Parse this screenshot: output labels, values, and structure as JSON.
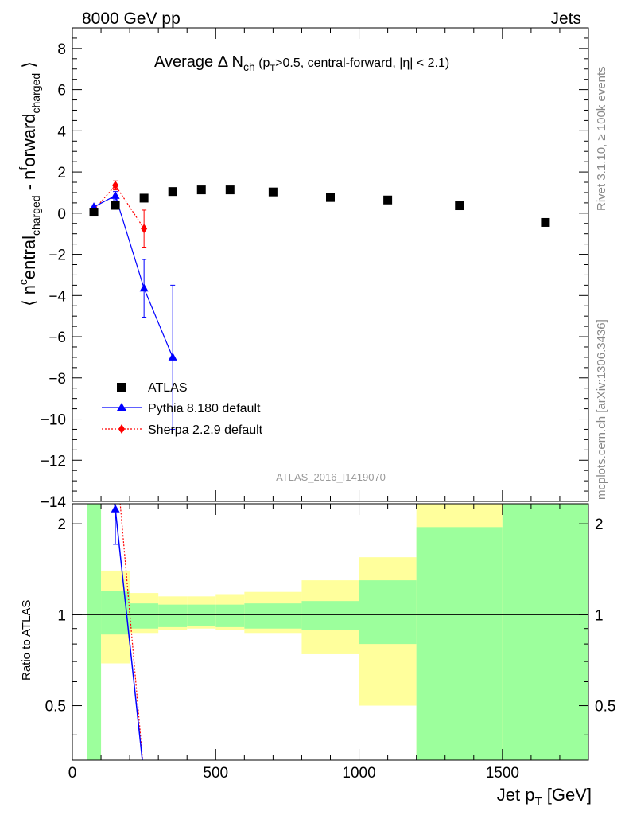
{
  "header": {
    "left": "8000 GeV pp",
    "right": "Jets"
  },
  "side_labels": {
    "rivet": "Rivet 3.1.10, ≥ 100k events",
    "mcplots": "mcplots.cern.ch [arXiv:1306.3436]"
  },
  "chart_data": [
    {
      "type": "scatter",
      "panel": "main",
      "title": {
        "prefix": "Average ",
        "delta": "Δ",
        "n": " N",
        "ch_sub": "ch",
        "open_p": " (p",
        "t_sub": "T",
        "rest": ">0.5, central-forward, |η| < 2.1)"
      },
      "ylabel": {
        "open": "⟨ n",
        "sup_c": "c",
        "entral": "entral",
        "charged_1": "charged",
        "dash": " - n",
        "sup_f": "f",
        "orward": "orward",
        "charged_2": "charged",
        "close": " ⟩"
      },
      "xlim": [
        0,
        1800
      ],
      "ylim": [
        -14,
        9
      ],
      "yticks": [
        "8",
        "6",
        "4",
        "2",
        "0",
        "−2",
        "−4",
        "−6",
        "−8",
        "−10",
        "−12",
        "−14"
      ],
      "ytick_values": [
        8,
        6,
        4,
        2,
        0,
        -2,
        -4,
        -6,
        -8,
        -10,
        -12,
        -14
      ],
      "watermark": "ATLAS_2016_I1419070",
      "series": [
        {
          "name": "ATLAS",
          "marker": "square",
          "color": "#000000",
          "x": [
            75,
            150,
            250,
            350,
            450,
            550,
            700,
            900,
            1100,
            1350,
            1650
          ],
          "y": [
            0.05,
            0.38,
            0.73,
            1.05,
            1.13,
            1.13,
            1.03,
            0.76,
            0.64,
            0.36,
            -0.45
          ]
        },
        {
          "name": "Pythia 8.180 default",
          "marker": "triangle",
          "color": "#0000ff",
          "line": "solid",
          "x": [
            75,
            150,
            250,
            350
          ],
          "y": [
            0.3,
            0.85,
            -3.65,
            -7.0
          ],
          "yerr": [
            0.1,
            0.2,
            1.4,
            3.5
          ]
        },
        {
          "name": "Sherpa 2.2.9 default",
          "marker": "diamond",
          "color": "#ff0000",
          "line": "dotted",
          "x": [
            75,
            150,
            250
          ],
          "y": [
            0.15,
            1.35,
            -0.75
          ],
          "yerr": [
            0.08,
            0.22,
            0.9
          ]
        }
      ]
    },
    {
      "type": "ratio",
      "panel": "ratio",
      "ylabel": "Ratio to ATLAS",
      "xlabel": "Jet p",
      "xlabel_sub": "T",
      "xlabel_unit": " [GeV]",
      "xlim": [
        0,
        1800
      ],
      "ylim": [
        0.33,
        2.33
      ],
      "xticks": [
        "0",
        "500",
        "1000",
        "1500"
      ],
      "xtick_values": [
        0,
        500,
        1000,
        1500
      ],
      "yticks": [
        "2",
        "1",
        "0.5"
      ],
      "ytick_values": [
        2,
        1,
        0.5
      ],
      "bins": [
        {
          "lo": 50,
          "hi": 100,
          "green": [
            0.33,
            2.33
          ],
          "yellow": [
            0.33,
            2.33
          ]
        },
        {
          "lo": 100,
          "hi": 200,
          "green": [
            0.86,
            1.2
          ],
          "yellow": [
            0.69,
            1.4
          ]
        },
        {
          "lo": 200,
          "hi": 300,
          "green": [
            0.9,
            1.09
          ],
          "yellow": [
            0.87,
            1.18
          ]
        },
        {
          "lo": 300,
          "hi": 400,
          "green": [
            0.91,
            1.08
          ],
          "yellow": [
            0.89,
            1.15
          ]
        },
        {
          "lo": 400,
          "hi": 500,
          "green": [
            0.92,
            1.08
          ],
          "yellow": [
            0.9,
            1.15
          ]
        },
        {
          "lo": 500,
          "hi": 600,
          "green": [
            0.91,
            1.08
          ],
          "yellow": [
            0.89,
            1.17
          ]
        },
        {
          "lo": 600,
          "hi": 800,
          "green": [
            0.9,
            1.09
          ],
          "yellow": [
            0.87,
            1.19
          ]
        },
        {
          "lo": 800,
          "hi": 1000,
          "green": [
            0.89,
            1.11
          ],
          "yellow": [
            0.74,
            1.3
          ]
        },
        {
          "lo": 1000,
          "hi": 1200,
          "green": [
            0.8,
            1.3
          ],
          "yellow": [
            0.5,
            1.55
          ]
        },
        {
          "lo": 1200,
          "hi": 1500,
          "green": [
            0.33,
            1.95
          ],
          "yellow": [
            0.33,
            2.33
          ]
        },
        {
          "lo": 1500,
          "hi": 1800,
          "green": [
            0.33,
            2.33
          ],
          "yellow": [
            0.33,
            2.33
          ]
        }
      ],
      "reference": 1.0
    }
  ]
}
